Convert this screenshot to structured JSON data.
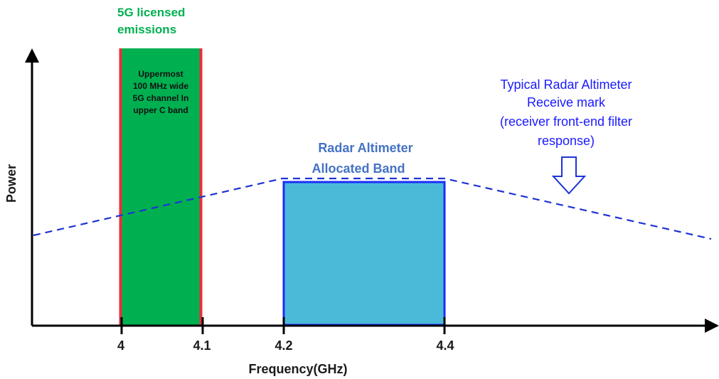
{
  "axes": {
    "y_label": "Power",
    "x_label": "Frequency(GHz)",
    "ticks": [
      "4",
      "4.1",
      "4.2",
      "4.4"
    ]
  },
  "band_5g": {
    "title_lines": [
      "5G licensed",
      "emissions"
    ],
    "inner_lines": [
      "Uppermost",
      "100 MHz wide",
      "5G channel In",
      "upper C band"
    ]
  },
  "radar_band": {
    "label_lines": [
      "Radar Altimeter",
      "Allocated Band"
    ]
  },
  "receive_mask": {
    "label_lines": [
      "Typical Radar Altimeter",
      "Receive mark",
      "(receiver front-end filter",
      "response)"
    ]
  },
  "colors": {
    "green_band": "#00b050",
    "red_edge": "#e8303a",
    "blue_band_fill": "#4bbad8",
    "blue_band_border": "#1a2dff",
    "dashed_line": "#1e33d6",
    "radar_label": "#4472c4",
    "mask_label": "#1a1aff",
    "green_title": "#00b050"
  }
}
